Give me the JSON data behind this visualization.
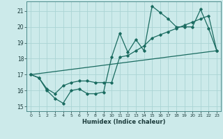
{
  "xlabel": "Humidex (Indice chaleur)",
  "xlim": [
    -0.5,
    23.5
  ],
  "ylim": [
    14.7,
    21.6
  ],
  "yticks": [
    15,
    16,
    17,
    18,
    19,
    20,
    21
  ],
  "xticks": [
    0,
    1,
    2,
    3,
    4,
    5,
    6,
    7,
    8,
    9,
    10,
    11,
    12,
    13,
    14,
    15,
    16,
    17,
    18,
    19,
    20,
    21,
    22,
    23
  ],
  "bg_color": "#cceaea",
  "grid_color": "#aad4d4",
  "line_color": "#1a6b60",
  "line1_x": [
    0,
    1,
    2,
    3,
    4,
    5,
    6,
    7,
    8,
    9,
    10,
    11,
    12,
    13,
    14,
    15,
    16,
    17,
    18,
    19,
    20,
    21,
    22,
    23
  ],
  "line1_y": [
    17.0,
    16.8,
    16.0,
    15.5,
    15.2,
    16.0,
    16.1,
    15.8,
    15.8,
    15.9,
    18.1,
    19.6,
    18.4,
    19.2,
    18.5,
    21.3,
    20.9,
    20.5,
    20.0,
    20.0,
    20.0,
    21.1,
    19.9,
    18.5
  ],
  "line2_x": [
    0,
    1,
    2,
    3,
    4,
    5,
    6,
    7,
    8,
    9,
    10,
    11,
    12,
    13,
    14,
    15,
    16,
    17,
    18,
    19,
    20,
    21,
    22,
    23
  ],
  "line2_y": [
    17.0,
    16.8,
    16.1,
    15.8,
    16.3,
    16.5,
    16.6,
    16.6,
    16.5,
    16.5,
    16.5,
    18.1,
    18.2,
    18.5,
    18.8,
    19.3,
    19.5,
    19.7,
    19.9,
    20.1,
    20.3,
    20.5,
    20.7,
    18.5
  ],
  "line3_x": [
    0,
    23
  ],
  "line3_y": [
    17.0,
    18.5
  ]
}
